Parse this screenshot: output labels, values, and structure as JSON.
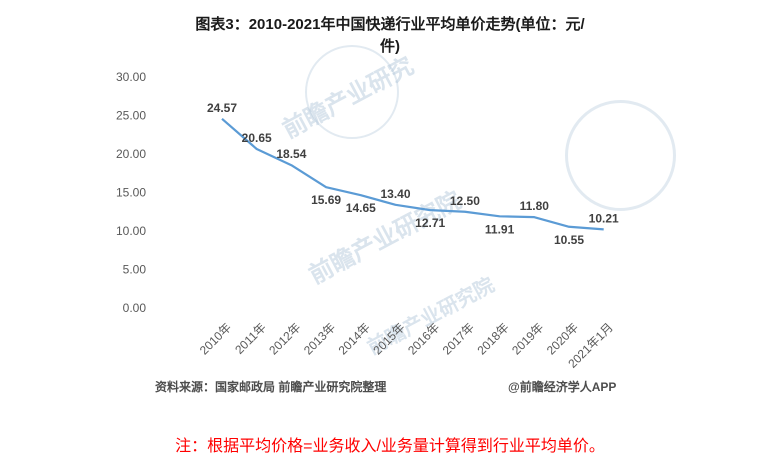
{
  "title": {
    "line1": "图表3：2010-2021年中国快递行业平均单价走势(单位：元/",
    "line2": "件)"
  },
  "chart_data": {
    "type": "line",
    "title": "图表3：2010-2021年中国快递行业平均单价走势(单位：元/件)",
    "categories": [
      "2010年",
      "2011年",
      "2012年",
      "2013年",
      "2014年",
      "2015年",
      "2016年",
      "2017年",
      "2018年",
      "2019年",
      "2020年",
      "2021年1月"
    ],
    "values": [
      24.57,
      20.65,
      18.54,
      15.69,
      14.65,
      13.4,
      12.71,
      12.5,
      11.91,
      11.8,
      10.55,
      10.21
    ],
    "value_labels": [
      "24.57",
      "20.65",
      "18.54",
      "15.69",
      "14.65",
      "13.40",
      "12.71",
      "12.50",
      "11.91",
      "11.80",
      "10.55",
      "10.21"
    ],
    "label_positions": [
      "above",
      "above",
      "above",
      "below",
      "below",
      "above",
      "below",
      "above",
      "below",
      "above",
      "below",
      "above"
    ],
    "xlabel": "",
    "ylabel": "",
    "ylim": [
      0,
      30
    ],
    "yticks": [
      "0.00",
      "5.00",
      "10.00",
      "15.00",
      "20.00",
      "25.00",
      "30.00"
    ],
    "grid": false,
    "legend_position": "none",
    "line_color": "#5B9BD5",
    "label_color": "#404040",
    "axis_text_color": "#595959"
  },
  "footer": {
    "source": "资料来源：国家邮政局 前瞻产业研究院整理",
    "credit": "@前瞻经济学人APP"
  },
  "note": "注：根据平均价格=业务收入/业务量计算得到行业平均单价。",
  "watermark": {
    "text1": "前瞻产业研究",
    "text2": "前瞻产业研究院",
    "text3": "前瞻产业研究院"
  }
}
